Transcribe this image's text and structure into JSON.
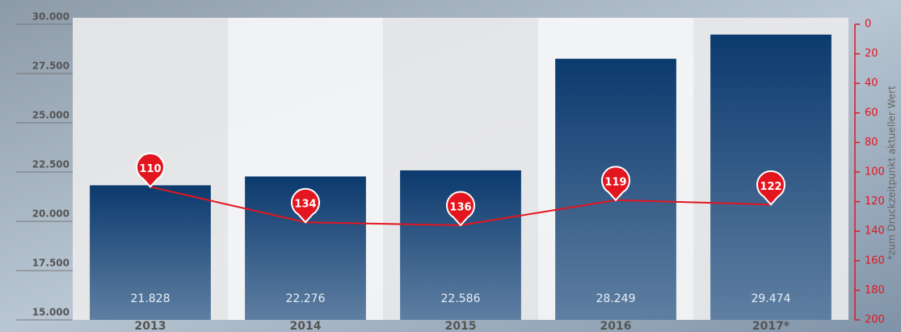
{
  "chart_data": {
    "type": "bar",
    "categories": [
      "2013",
      "2014",
      "2015",
      "2016",
      "2017*"
    ],
    "series": [
      {
        "type": "bar",
        "color": "#0b3a6e",
        "values": [
          21828,
          22276,
          22586,
          28249,
          29474
        ],
        "value_labels": [
          "21.828",
          "22.276",
          "22.586",
          "28.249",
          "29.474"
        ]
      },
      {
        "type": "line",
        "axis": "y2",
        "color": "#e3151f",
        "values": [
          110,
          134,
          136,
          119,
          122
        ]
      }
    ],
    "ylim": [
      15000,
      30000
    ],
    "yticks": [
      {
        "value": 15000,
        "label": "15.000"
      },
      {
        "value": 17500,
        "label": "17.500"
      },
      {
        "value": 20000,
        "label": "20.000"
      },
      {
        "value": 22500,
        "label": "22.500"
      },
      {
        "value": 25000,
        "label": "25.000"
      },
      {
        "value": 27500,
        "label": "27.500"
      },
      {
        "value": 30000,
        "label": "30.000"
      }
    ],
    "y2lim": [
      0,
      200
    ],
    "y2ticks": [
      0,
      20,
      40,
      60,
      80,
      100,
      120,
      140,
      160,
      180,
      200
    ],
    "y2_inverted": true,
    "note": "*zum Druckzeitpunkt aktueller Wert"
  }
}
